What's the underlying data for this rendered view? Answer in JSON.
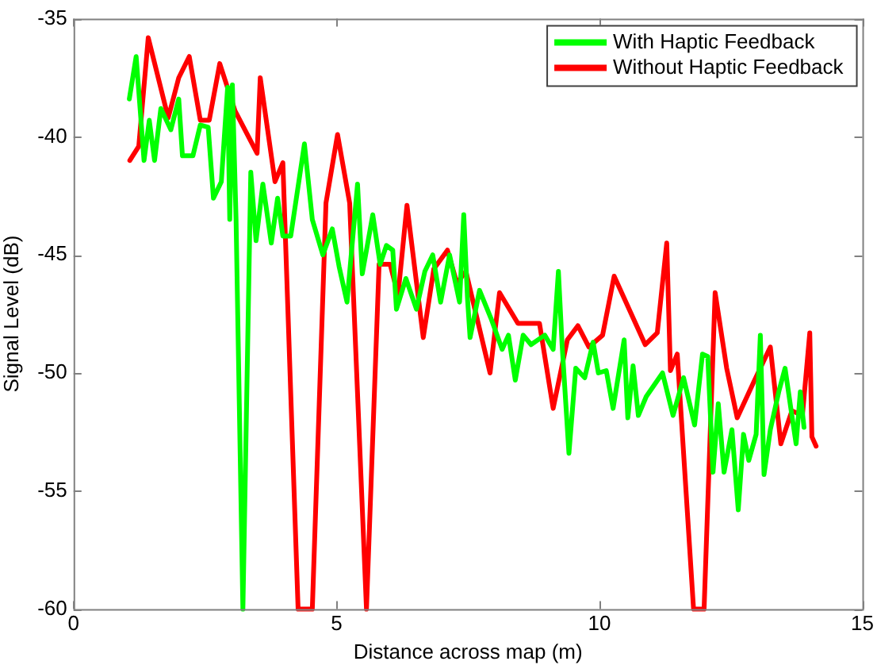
{
  "chart_data": {
    "type": "line",
    "xlabel": "Distance across map (m)",
    "ylabel": "Signal Level (dB)",
    "xlim": [
      0,
      15
    ],
    "xticks": [
      0,
      5,
      10,
      15
    ],
    "ylim": [
      -60,
      -35
    ],
    "yticks": [
      -60,
      -55,
      -50,
      -45,
      -40,
      -35
    ],
    "grid": false,
    "legend": "top right",
    "marker": "none",
    "line_style": "solid",
    "series": [
      {
        "name": "With Haptic Feedback",
        "color": "#00ff00",
        "x": [
          1.06,
          1.19,
          1.34,
          1.44,
          1.54,
          1.66,
          1.85,
          2.0,
          2.07,
          2.27,
          2.41,
          2.56,
          2.66,
          2.81,
          2.93,
          2.97,
          3.02,
          3.09,
          3.22,
          3.37,
          3.47,
          3.6,
          3.76,
          3.88,
          3.98,
          4.13,
          4.39,
          4.54,
          4.74,
          4.92,
          5.05,
          5.2,
          5.4,
          5.49,
          5.69,
          5.83,
          5.95,
          6.07,
          6.14,
          6.32,
          6.52,
          6.68,
          6.83,
          6.98,
          7.15,
          7.34,
          7.42,
          7.49,
          7.54,
          7.72,
          7.94,
          8.15,
          8.27,
          8.4,
          8.55,
          8.7,
          8.96,
          9.12,
          9.22,
          9.29,
          9.42,
          9.55,
          9.72,
          9.88,
          9.98,
          10.13,
          10.26,
          10.47,
          10.54,
          10.64,
          10.74,
          10.89,
          11.2,
          11.4,
          11.6,
          11.81,
          11.96,
          12.06,
          12.16,
          12.26,
          12.37,
          12.52,
          12.64,
          12.74,
          12.84,
          12.98,
          13.06,
          13.13,
          13.25,
          13.41,
          13.53,
          13.64,
          13.74,
          13.82,
          13.89
        ],
        "values": [
          -38.4,
          -36.6,
          -41.0,
          -39.3,
          -41.0,
          -38.8,
          -39.7,
          -38.4,
          -40.8,
          -40.8,
          -39.5,
          -39.6,
          -42.6,
          -41.9,
          -37.9,
          -43.5,
          -37.8,
          -43.5,
          -60,
          -41.5,
          -44.4,
          -42.0,
          -44.5,
          -42.6,
          -44.2,
          -44.2,
          -40.3,
          -43.5,
          -45.0,
          -43.9,
          -45.5,
          -47.0,
          -42.0,
          -45.8,
          -43.3,
          -45.4,
          -44.6,
          -44.8,
          -47.3,
          -46.0,
          -47.3,
          -45.7,
          -45.0,
          -47.0,
          -45.0,
          -47.0,
          -43.3,
          -46.8,
          -48.5,
          -46.5,
          -47.7,
          -49.0,
          -48.4,
          -50.3,
          -48.4,
          -48.8,
          -48.4,
          -49.0,
          -45.7,
          -48.8,
          -53.4,
          -49.8,
          -50.2,
          -48.7,
          -50.0,
          -49.9,
          -51.5,
          -48.6,
          -51.9,
          -49.7,
          -51.8,
          -51.0,
          -50.0,
          -51.8,
          -50.2,
          -52.2,
          -49.2,
          -49.3,
          -54.2,
          -51.3,
          -54.2,
          -52.4,
          -55.8,
          -52.6,
          -53.7,
          -52.6,
          -48.4,
          -54.3,
          -52.4,
          -50.8,
          -49.8,
          -51.5,
          -53.0,
          -50.8,
          -52.3
        ]
      },
      {
        "name": "Without Haptic Feedback",
        "color": "#ff0000",
        "x": [
          1.07,
          1.24,
          1.42,
          1.8,
          2.0,
          2.2,
          2.41,
          2.58,
          2.78,
          3.07,
          3.49,
          3.55,
          3.83,
          3.98,
          4.27,
          4.54,
          4.8,
          5.02,
          5.25,
          5.57,
          5.81,
          6.02,
          6.17,
          6.34,
          6.65,
          6.85,
          7.11,
          7.29,
          7.46,
          7.92,
          8.1,
          8.45,
          8.86,
          9.12,
          9.39,
          9.59,
          9.8,
          10.06,
          10.28,
          10.87,
          11.1,
          11.28,
          11.35,
          11.48,
          11.79,
          11.99,
          12.2,
          12.42,
          12.62,
          12.93,
          13.25,
          13.45,
          13.66,
          13.86,
          14.0,
          14.04,
          14.12
        ],
        "values": [
          -41.0,
          -40.4,
          -35.8,
          -39.2,
          -37.5,
          -36.6,
          -39.3,
          -39.3,
          -36.9,
          -38.9,
          -40.7,
          -37.5,
          -41.9,
          -41.1,
          -60,
          -60,
          -42.8,
          -39.9,
          -42.8,
          -60,
          -45.4,
          -45.4,
          -46.7,
          -42.9,
          -48.5,
          -45.6,
          -44.8,
          -46.2,
          -45.7,
          -50.0,
          -46.6,
          -47.9,
          -47.9,
          -51.5,
          -48.6,
          -48.0,
          -48.9,
          -48.4,
          -45.9,
          -48.8,
          -48.3,
          -44.5,
          -49.9,
          -49.2,
          -60,
          -60,
          -46.6,
          -49.8,
          -51.9,
          -50.4,
          -48.9,
          -53.0,
          -51.6,
          -51.8,
          -48.3,
          -52.7,
          -53.1
        ]
      }
    ]
  }
}
